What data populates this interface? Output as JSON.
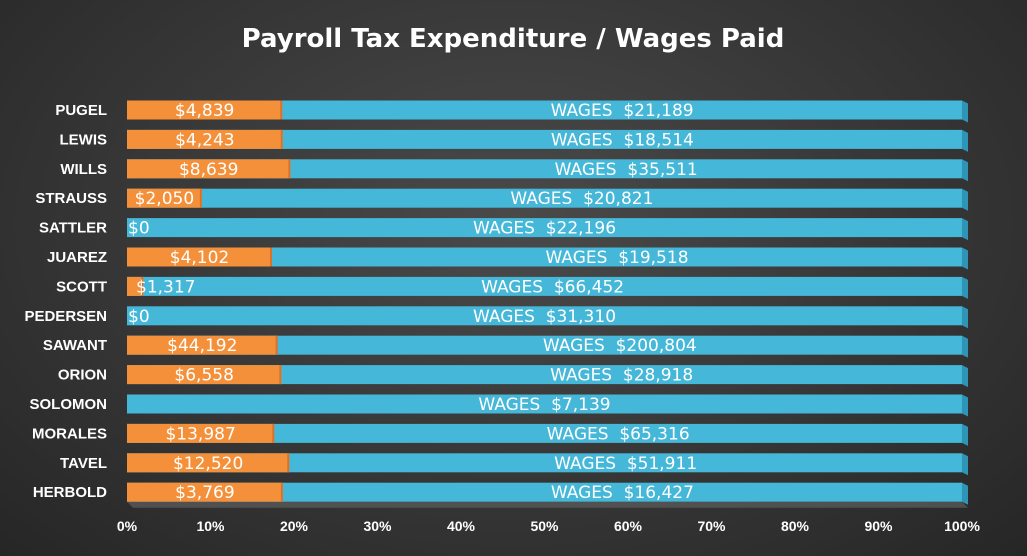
{
  "chart_data": {
    "type": "bar",
    "stacking": "100% stacked horizontal",
    "title": "Payroll Tax Expenditure / Wages Paid",
    "categories": [
      "PUGEL",
      "LEWIS",
      "WILLS",
      "STRAUSS",
      "SATTLER",
      "JUAREZ",
      "SCOTT",
      "PEDERSEN",
      "SAWANT",
      "ORION",
      "SOLOMON",
      "MORALES",
      "TAVEL",
      "HERBOLD"
    ],
    "series": [
      {
        "values": [
          4839,
          4243,
          8639,
          2050,
          0,
          4102,
          1317,
          0,
          44192,
          6558,
          0,
          13987,
          12520,
          3769
        ],
        "labels": [
          "$4,839",
          "$4,243",
          "$8,639",
          "$2,050",
          "$0",
          "$4,102",
          "$1,317",
          "$0",
          "$44,192",
          "$6,558",
          "",
          "$13,987",
          "$12,520",
          "$3,769"
        ]
      },
      {
        "values": [
          21189,
          18514,
          35511,
          20821,
          22196,
          19518,
          66452,
          31310,
          200804,
          28918,
          7139,
          65316,
          51911,
          16427
        ],
        "labels": [
          "WAGES  $21,189",
          "WAGES  $18,514",
          "WAGES  $35,511",
          "WAGES  $20,821",
          "WAGES  $22,196",
          "WAGES  $19,518",
          "WAGES  $66,452",
          "WAGES  $31,310",
          "WAGES  $200,804",
          "WAGES  $28,918",
          "WAGES  $7,139",
          "WAGES  $65,316",
          "WAGES  $51,911",
          "WAGES  $16,427"
        ]
      }
    ],
    "x_ticks": [
      "0%",
      "10%",
      "20%",
      "30%",
      "40%",
      "50%",
      "60%",
      "70%",
      "80%",
      "90%",
      "100%"
    ],
    "xlim": [
      0,
      100
    ],
    "grid": false,
    "legend": "none",
    "colors": {
      "tax": "#f5903a",
      "tax_dark": "#d8722a",
      "wages": "#45b7d8",
      "wages_dark": "#2f95b6",
      "floor": "#595959",
      "background": "#333333"
    }
  }
}
